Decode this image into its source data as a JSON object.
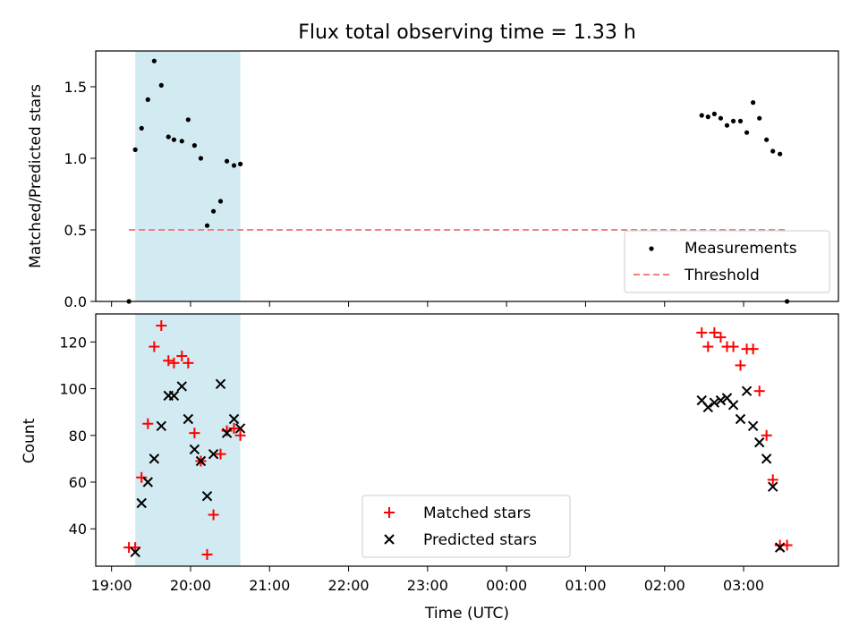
{
  "chart_data": [
    {
      "type": "scatter",
      "title": "Flux total observing time = 1.33 h",
      "ylabel": "Matched/Predicted stars",
      "xlabel": "",
      "x_units": "hours since 19:00 UTC",
      "xlim": [
        -0.2,
        9.2
      ],
      "ylim": [
        0,
        1.75
      ],
      "yticks": [
        0.0,
        0.5,
        1.0,
        1.5
      ],
      "ytick_labels": [
        "0.0",
        "0.5",
        "1.0",
        "1.5"
      ],
      "grid": false,
      "shaded_band": {
        "x": [
          0.3,
          1.63
        ],
        "color": "#add8e6"
      },
      "threshold": {
        "y": 0.5,
        "x": [
          0.22,
          8.55
        ],
        "color": "#f08080",
        "style": "dashed"
      },
      "legend": {
        "placement": "lower right",
        "entries": [
          "Measurements",
          "Threshold"
        ]
      },
      "series": [
        {
          "name": "Measurements",
          "color": "#000000",
          "x": [
            0.22,
            0.3,
            0.38,
            0.46,
            0.54,
            0.63,
            0.72,
            0.79,
            0.89,
            0.97,
            1.05,
            1.13,
            1.21,
            1.29,
            1.38,
            1.46,
            1.55,
            1.63,
            7.47,
            7.55,
            7.63,
            7.71,
            7.79,
            7.87,
            7.96,
            8.04,
            8.12,
            8.2,
            8.29,
            8.37,
            8.46,
            8.55
          ],
          "y": [
            0.0,
            1.06,
            1.21,
            1.41,
            1.68,
            1.51,
            1.15,
            1.13,
            1.12,
            1.27,
            1.09,
            1.0,
            0.53,
            0.63,
            0.7,
            0.98,
            0.95,
            0.96,
            1.3,
            1.29,
            1.31,
            1.28,
            1.23,
            1.26,
            1.26,
            1.18,
            1.39,
            1.28,
            1.13,
            1.05,
            1.03,
            0.0
          ]
        }
      ]
    },
    {
      "type": "scatter",
      "title": "",
      "ylabel": "Count",
      "xlabel": "Time (UTC)",
      "x_units": "hours since 19:00 UTC",
      "xlim": [
        -0.2,
        9.2
      ],
      "ylim": [
        24,
        132
      ],
      "yticks": [
        40,
        60,
        80,
        100,
        120
      ],
      "ytick_labels": [
        "40",
        "60",
        "80",
        "100",
        "120"
      ],
      "xticks": [
        0,
        1,
        2,
        3,
        4,
        5,
        6,
        7,
        8
      ],
      "xtick_labels": [
        "19:00",
        "20:00",
        "21:00",
        "22:00",
        "23:00",
        "00:00",
        "01:00",
        "02:00",
        "03:00"
      ],
      "grid": false,
      "shaded_band": {
        "x": [
          0.3,
          1.63
        ],
        "color": "#add8e6"
      },
      "legend": {
        "placement": "lower center",
        "entries": [
          "Matched stars",
          "Predicted stars"
        ]
      },
      "series": [
        {
          "name": "Matched stars",
          "marker": "plus",
          "color": "#ff0000",
          "x": [
            0.22,
            0.3,
            0.38,
            0.46,
            0.54,
            0.63,
            0.72,
            0.79,
            0.89,
            0.97,
            1.05,
            1.13,
            1.21,
            1.29,
            1.38,
            1.46,
            1.55,
            1.63,
            7.47,
            7.55,
            7.63,
            7.71,
            7.79,
            7.87,
            7.96,
            8.04,
            8.12,
            8.2,
            8.29,
            8.37,
            8.46,
            8.55
          ],
          "y": [
            32,
            32,
            62,
            85,
            118,
            127,
            112,
            111,
            114,
            111,
            81,
            69,
            29,
            46,
            72,
            82,
            83,
            80,
            124,
            118,
            124,
            122,
            118,
            118,
            110,
            117,
            117,
            99,
            80,
            61,
            33,
            33
          ]
        },
        {
          "name": "Predicted stars",
          "marker": "x",
          "color": "#000000",
          "x": [
            0.3,
            0.38,
            0.46,
            0.54,
            0.63,
            0.72,
            0.79,
            0.89,
            0.97,
            1.05,
            1.13,
            1.21,
            1.29,
            1.38,
            1.46,
            1.55,
            1.63,
            7.47,
            7.55,
            7.63,
            7.71,
            7.79,
            7.87,
            7.96,
            8.04,
            8.12,
            8.2,
            8.29,
            8.37,
            8.46
          ],
          "y": [
            30,
            51,
            60,
            70,
            84,
            97,
            97,
            101,
            87,
            74,
            69,
            54,
            72,
            102,
            81,
            87,
            83,
            95,
            92,
            94,
            95,
            96,
            93,
            87,
            99,
            84,
            77,
            70,
            58,
            32
          ]
        }
      ]
    }
  ]
}
